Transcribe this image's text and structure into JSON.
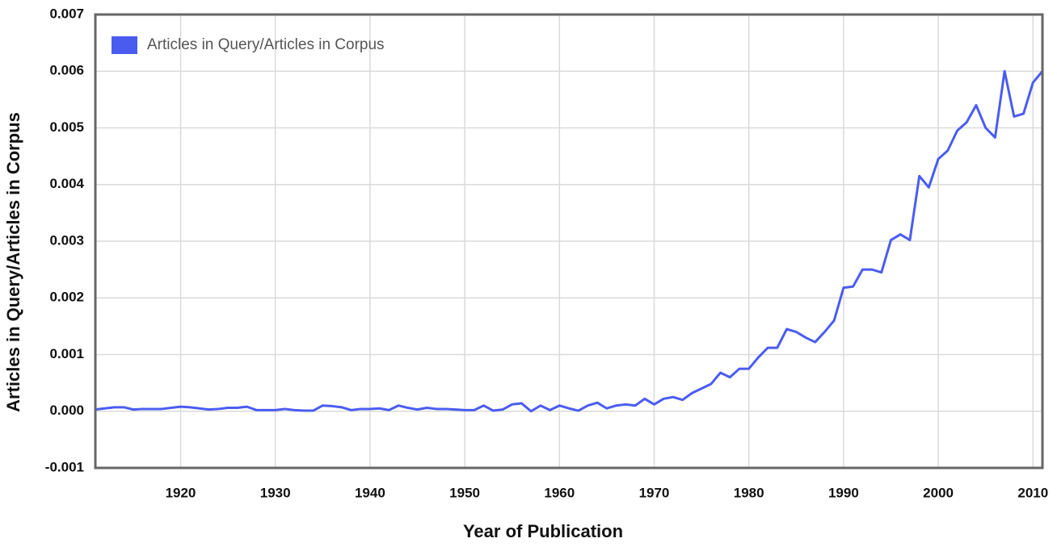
{
  "chart_data": {
    "type": "line",
    "x_label": "Year of Publication",
    "y_label": "Articles in Query/Articles in Corpus",
    "x": [
      1911,
      1912,
      1913,
      1914,
      1915,
      1916,
      1917,
      1918,
      1919,
      1920,
      1921,
      1922,
      1923,
      1924,
      1925,
      1926,
      1927,
      1928,
      1929,
      1930,
      1931,
      1932,
      1933,
      1934,
      1935,
      1936,
      1937,
      1938,
      1939,
      1940,
      1941,
      1942,
      1943,
      1944,
      1945,
      1946,
      1947,
      1948,
      1949,
      1950,
      1951,
      1952,
      1953,
      1954,
      1955,
      1956,
      1957,
      1958,
      1959,
      1960,
      1961,
      1962,
      1963,
      1964,
      1965,
      1966,
      1967,
      1968,
      1969,
      1970,
      1971,
      1972,
      1973,
      1974,
      1975,
      1976,
      1977,
      1978,
      1979,
      1980,
      1981,
      1982,
      1983,
      1984,
      1985,
      1986,
      1987,
      1988,
      1989,
      1990,
      1991,
      1992,
      1993,
      1994,
      1995,
      1996,
      1997,
      1998,
      1999,
      2000,
      2001,
      2002,
      2003,
      2004,
      2005,
      2006,
      2007,
      2008,
      2009,
      2010,
      2011
    ],
    "series": [
      {
        "name": "Articles in Query/Articles in Corpus",
        "color": "#4a5cf0",
        "values": [
          3e-05,
          5e-05,
          7e-05,
          7e-05,
          3e-05,
          4e-05,
          4e-05,
          4e-05,
          6e-05,
          8e-05,
          7e-05,
          5e-05,
          3e-05,
          4e-05,
          6e-05,
          6e-05,
          8e-05,
          2e-05,
          2e-05,
          2e-05,
          4e-05,
          2e-05,
          1e-05,
          1e-05,
          0.0001,
          9e-05,
          7e-05,
          2e-05,
          4e-05,
          4e-05,
          5e-05,
          2e-05,
          0.0001,
          6e-05,
          3e-05,
          6e-05,
          4e-05,
          4e-05,
          3e-05,
          2e-05,
          2e-05,
          0.0001,
          1e-05,
          3e-05,
          0.00012,
          0.00014,
          0.0,
          0.0001,
          2e-05,
          0.0001,
          5e-05,
          1e-05,
          0.0001,
          0.00015,
          5e-05,
          0.0001,
          0.00012,
          0.0001,
          0.00022,
          0.00012,
          0.00022,
          0.00025,
          0.0002,
          0.00032,
          0.0004,
          0.00048,
          0.00068,
          0.0006,
          0.00075,
          0.00075,
          0.00095,
          0.00112,
          0.00112,
          0.00145,
          0.0014,
          0.0013,
          0.00122,
          0.0014,
          0.0016,
          0.00218,
          0.0022,
          0.0025,
          0.0025,
          0.00245,
          0.00302,
          0.00312,
          0.00302,
          0.00415,
          0.00395,
          0.00445,
          0.0046,
          0.00495,
          0.0051,
          0.0054,
          0.005,
          0.00483,
          0.006,
          0.0052,
          0.00525,
          0.0058,
          0.006
        ]
      }
    ],
    "xlim": [
      1911,
      2011
    ],
    "xticks": [
      1920,
      1930,
      1940,
      1950,
      1960,
      1970,
      1980,
      1990,
      2000,
      2010
    ],
    "ylim": [
      -0.001,
      0.007
    ],
    "yticks": [
      -0.001,
      {
        "value": 0,
        "label": "0.000"
      },
      0.001,
      0.002,
      0.003,
      0.004,
      0.005,
      0.006,
      0.007
    ],
    "grid": true,
    "legend": "top-left"
  }
}
